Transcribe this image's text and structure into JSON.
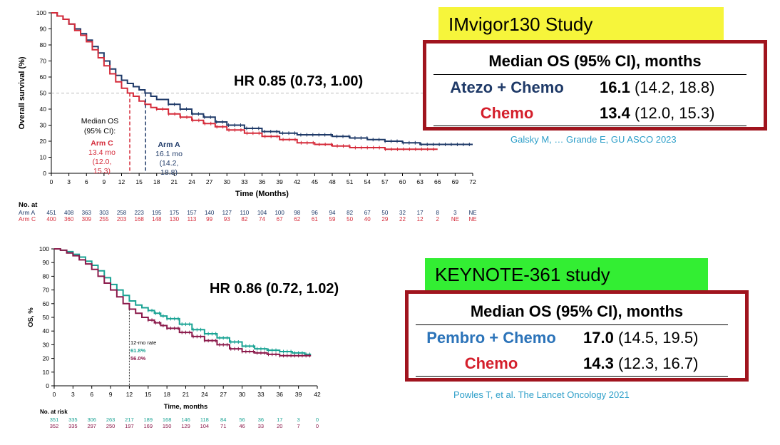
{
  "colors": {
    "armA": "#1f3a68",
    "armC": "#d52b3a",
    "pembro": "#1aa394",
    "chemo2": "#8b1a4b",
    "box_border": "#a0141e",
    "imvigor_label_bg": "#f6f53b",
    "keynote_label_bg": "#33ee33",
    "citation": "#2e9fc9",
    "atezo_text": "#1f3a68",
    "pembro_text": "#2b73b9",
    "chemo_text": "#d41f2b"
  },
  "top": {
    "study_label": "IMvigor130  Study",
    "hr_text": "HR 0.85 (0.73, 1.00)",
    "citation": "Galsky M, … Grande E, GU ASCO 2023",
    "table": {
      "header": "Median OS (95% CI), months",
      "rows": [
        {
          "arm": "Atezo + Chemo",
          "median": "16.1",
          "ci": " (14.2, 18.8)"
        },
        {
          "arm": "Chemo",
          "median": "13.4",
          "ci": " (12.0, 15.3)"
        }
      ]
    },
    "annotations": {
      "median_label": [
        "Median OS",
        "(95% CI):"
      ],
      "armC_label": [
        "Arm C",
        "13.4 mo",
        "(12.0,",
        "15.3)"
      ],
      "armA_label": [
        "Arm A",
        "16.1 mo",
        "(14.2,",
        "18.8)"
      ]
    },
    "risk": {
      "title": "No. at",
      "rows": [
        {
          "label": "Arm A",
          "values": [
            "451",
            "408",
            "363",
            "303",
            "258",
            "223",
            "195",
            "175",
            "157",
            "140",
            "127",
            "110",
            "104",
            "100",
            "98",
            "96",
            "94",
            "82",
            "67",
            "50",
            "32",
            "17",
            "8",
            "3",
            "NE"
          ]
        },
        {
          "label": "Arm C",
          "values": [
            "400",
            "360",
            "309",
            "255",
            "203",
            "168",
            "148",
            "130",
            "113",
            "99",
            "93",
            "82",
            "74",
            "67",
            "62",
            "61",
            "59",
            "50",
            "40",
            "29",
            "22",
            "12",
            "2",
            "NE",
            "NE"
          ]
        }
      ]
    }
  },
  "bottom": {
    "study_label": "KEYNOTE-361 study",
    "hr_text": "HR 0.86 (0.72, 1.02)",
    "citation": "Powles T, et al.  The Lancet Oncology 2021",
    "table": {
      "header": "Median OS (95% CI), months",
      "rows": [
        {
          "arm": "Pembro + Chemo",
          "median": "17.0",
          "ci": " (14.5, 19.5)"
        },
        {
          "arm": "Chemo",
          "median": "14.3",
          "ci": " (12.3, 16.7)"
        }
      ]
    },
    "annotations": {
      "rate_title": "12-mo rate",
      "rate_pembro": "61.8%",
      "rate_chemo": "56.0%"
    },
    "risk": {
      "title": "No. at risk",
      "rows": [
        {
          "label": "",
          "values": [
            "351",
            "335",
            "306",
            "263",
            "217",
            "189",
            "168",
            "146",
            "118",
            "84",
            "56",
            "36",
            "17",
            "3",
            "0"
          ]
        },
        {
          "label": "",
          "values": [
            "352",
            "335",
            "297",
            "250",
            "197",
            "169",
            "150",
            "129",
            "104",
            "71",
            "46",
            "33",
            "20",
            "7",
            "0"
          ]
        }
      ]
    }
  },
  "chart_data": [
    {
      "type": "line",
      "xlabel": "Time (Months)",
      "ylabel": "Overall survival (%)",
      "xlim": [
        0,
        72
      ],
      "ylim": [
        0,
        100
      ],
      "xticks": [
        0,
        3,
        6,
        9,
        12,
        15,
        18,
        21,
        24,
        27,
        30,
        33,
        36,
        39,
        42,
        45,
        48,
        51,
        54,
        57,
        60,
        63,
        66,
        69,
        72
      ],
      "yticks": [
        0,
        10,
        20,
        30,
        40,
        50,
        60,
        70,
        80,
        90,
        100
      ],
      "reference_line_y": 50,
      "median_lines": [
        {
          "series": "Arm C",
          "x": 13.4
        },
        {
          "series": "Arm A",
          "x": 16.1
        }
      ],
      "series": [
        {
          "name": "Arm A",
          "color": "#1f3a68",
          "x": [
            0,
            1,
            2,
            3,
            4,
            5,
            6,
            7,
            8,
            9,
            10,
            11,
            12,
            13,
            14,
            15,
            16,
            17,
            18,
            20,
            22,
            24,
            26,
            28,
            30,
            33,
            36,
            39,
            42,
            45,
            48,
            51,
            54,
            57,
            60,
            63,
            66,
            69,
            72
          ],
          "y": [
            100,
            98,
            96,
            93,
            90,
            87,
            83,
            79,
            75,
            70,
            65,
            61,
            58,
            56,
            54,
            52,
            50,
            48,
            46,
            43,
            40,
            37,
            35,
            32,
            30,
            28,
            26,
            25,
            24,
            24,
            23,
            22,
            21,
            20,
            19,
            18,
            18,
            18,
            18
          ]
        },
        {
          "name": "Arm C",
          "color": "#d52b3a",
          "x": [
            0,
            1,
            2,
            3,
            4,
            5,
            6,
            7,
            8,
            9,
            10,
            11,
            12,
            13,
            14,
            15,
            16,
            17,
            18,
            20,
            22,
            24,
            26,
            28,
            30,
            33,
            36,
            39,
            42,
            45,
            48,
            51,
            54,
            57,
            60,
            63,
            66
          ],
          "y": [
            100,
            98,
            96,
            93,
            89,
            86,
            82,
            77,
            72,
            67,
            62,
            57,
            53,
            50,
            48,
            45,
            43,
            41,
            40,
            37,
            35,
            33,
            31,
            29,
            27,
            25,
            23,
            21,
            19,
            18,
            17,
            16,
            16,
            15,
            15,
            15,
            15
          ]
        }
      ]
    },
    {
      "type": "line",
      "xlabel": "Time, months",
      "ylabel": "OS, %",
      "xlim": [
        0,
        42
      ],
      "ylim": [
        0,
        100
      ],
      "xticks": [
        0,
        3,
        6,
        9,
        12,
        15,
        18,
        21,
        24,
        27,
        30,
        33,
        36,
        39,
        42
      ],
      "yticks": [
        0,
        10,
        20,
        30,
        40,
        50,
        60,
        70,
        80,
        90,
        100
      ],
      "reference_line_x": 12,
      "series": [
        {
          "color": "#1aa394",
          "x": [
            0,
            1,
            2,
            3,
            4,
            5,
            6,
            7,
            8,
            9,
            10,
            11,
            12,
            13,
            14,
            15,
            16,
            17,
            18,
            20,
            22,
            24,
            26,
            28,
            30,
            32,
            34,
            36,
            38,
            40,
            41
          ],
          "y": [
            100,
            99,
            98,
            96,
            94,
            91,
            88,
            84,
            79,
            74,
            70,
            66,
            62,
            59,
            57,
            55,
            53,
            51,
            49,
            45,
            41,
            38,
            35,
            32,
            29,
            27,
            26,
            25,
            24,
            23,
            23
          ]
        },
        {
          "color": "#8b1a4b",
          "x": [
            0,
            1,
            2,
            3,
            4,
            5,
            6,
            7,
            8,
            9,
            10,
            11,
            12,
            13,
            14,
            15,
            16,
            17,
            18,
            20,
            22,
            24,
            26,
            28,
            30,
            32,
            34,
            36,
            38,
            40,
            41
          ],
          "y": [
            100,
            99,
            97,
            95,
            92,
            89,
            85,
            80,
            75,
            70,
            65,
            60,
            56,
            53,
            50,
            48,
            46,
            44,
            42,
            39,
            36,
            33,
            30,
            27,
            25,
            24,
            23,
            22,
            22,
            22,
            22
          ]
        }
      ]
    }
  ]
}
